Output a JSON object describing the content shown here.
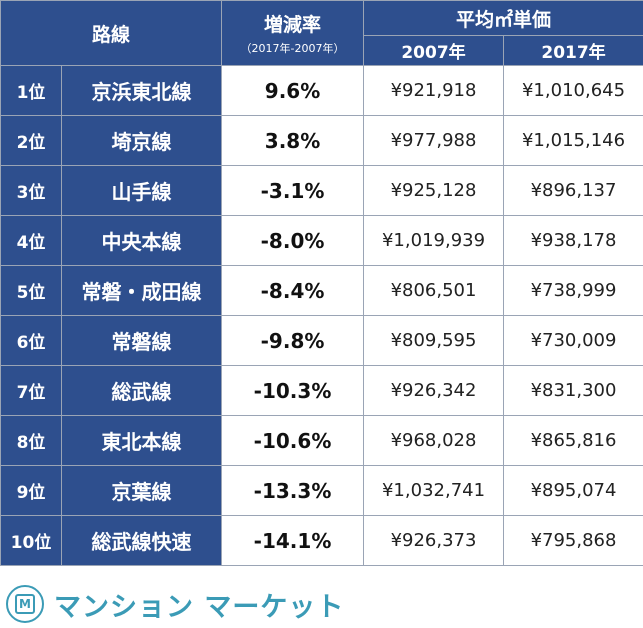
{
  "header": {
    "line": "路線",
    "rate": "増減率",
    "rate_sub": "（2017年-2007年）",
    "avg_price": "平均㎡単価",
    "year_2007": "2007年",
    "year_2017": "2017年"
  },
  "rows": [
    {
      "rank": "1位",
      "line": "京浜東北線",
      "rate": "9.6%",
      "p2007": "¥921,918",
      "p2017": "¥1,010,645"
    },
    {
      "rank": "2位",
      "line": "埼京線",
      "rate": "3.8%",
      "p2007": "¥977,988",
      "p2017": "¥1,015,146"
    },
    {
      "rank": "3位",
      "line": "山手線",
      "rate": "-3.1%",
      "p2007": "¥925,128",
      "p2017": "¥896,137"
    },
    {
      "rank": "4位",
      "line": "中央本線",
      "rate": "-8.0%",
      "p2007": "¥1,019,939",
      "p2017": "¥938,178"
    },
    {
      "rank": "5位",
      "line": "常磐・成田線",
      "rate": "-8.4%",
      "p2007": "¥806,501",
      "p2017": "¥738,999"
    },
    {
      "rank": "6位",
      "line": "常磐線",
      "rate": "-9.8%",
      "p2007": "¥809,595",
      "p2017": "¥730,009"
    },
    {
      "rank": "7位",
      "line": "総武線",
      "rate": "-10.3%",
      "p2007": "¥926,342",
      "p2017": "¥831,300"
    },
    {
      "rank": "8位",
      "line": "東北本線",
      "rate": "-10.6%",
      "p2007": "¥968,028",
      "p2017": "¥865,816"
    },
    {
      "rank": "9位",
      "line": "京葉線",
      "rate": "-13.3%",
      "p2007": "¥1,032,741",
      "p2017": "¥895,074"
    },
    {
      "rank": "10位",
      "line": "総武線快速",
      "rate": "-14.1%",
      "p2007": "¥926,373",
      "p2017": "¥795,868"
    }
  ],
  "brand": {
    "logo_letter": "M",
    "name": "マンション マーケット",
    "icon": "building-logo-icon",
    "color": "#3b9bb6"
  },
  "colors": {
    "header_bg": "#2e4f8e",
    "border": "#9aa4b5"
  }
}
